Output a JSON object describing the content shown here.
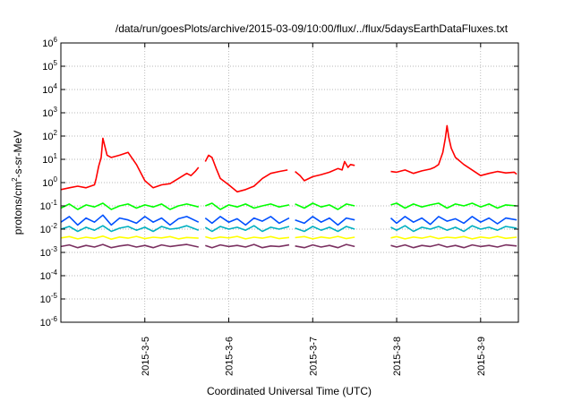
{
  "chart_data": {
    "type": "line",
    "title": "/data/run/goesPlots/archive/2015-03-09/10:00/flux/../flux/5daysEarthDataFluxes.txt",
    "xlabel": "Coordinated Universal Time (UTC)",
    "ylabel_parts": {
      "base": "protons/cm",
      "sup": "2",
      "rest": "-s-sr-MeV"
    },
    "x_unit": "days relative to 2015-03-05 00:00 UTC",
    "xlim": [
      -1.0,
      4.45
    ],
    "yscale": "log",
    "ylim": [
      1e-06,
      1000000.0
    ],
    "grid": true,
    "legend": "none",
    "x_tick_values": [
      0,
      1,
      2,
      3,
      4
    ],
    "x_tick_labels": [
      "2015-3-5",
      "2015-3-6",
      "2015-3-7",
      "2015-3-8",
      "2015-3-9"
    ],
    "y_tick_exponents": [
      -6,
      -5,
      -4,
      -3,
      -2,
      -1,
      0,
      1,
      2,
      3,
      4,
      5,
      6
    ],
    "data_gaps": [
      [
        0.65,
        0.72
      ],
      [
        1.72,
        1.79
      ],
      [
        2.52,
        2.93
      ]
    ],
    "series": [
      {
        "color": "#ff0000",
        "x": [
          -1.0,
          -0.9,
          -0.8,
          -0.7,
          -0.6,
          -0.58,
          -0.55,
          -0.52,
          -0.5,
          -0.45,
          -0.4,
          -0.3,
          -0.2,
          -0.1,
          0.0,
          0.1,
          0.2,
          0.3,
          0.4,
          0.5,
          0.55,
          0.6,
          0.64,
          0.72,
          0.76,
          0.8,
          0.85,
          0.9,
          1.0,
          1.1,
          1.2,
          1.3,
          1.4,
          1.5,
          1.6,
          1.7,
          1.79,
          1.85,
          1.9,
          2.0,
          2.1,
          2.2,
          2.3,
          2.35,
          2.38,
          2.42,
          2.45,
          2.5,
          2.93,
          3.0,
          3.1,
          3.2,
          3.3,
          3.4,
          3.45,
          3.5,
          3.55,
          3.58,
          3.6,
          3.62,
          3.65,
          3.7,
          3.8,
          3.9,
          4.0,
          4.1,
          4.2,
          4.3,
          4.4,
          4.43
        ],
        "y": [
          0.5,
          0.6,
          0.7,
          0.6,
          0.8,
          1.5,
          5,
          12,
          80,
          15,
          12,
          15,
          20,
          6,
          1.2,
          0.6,
          0.8,
          0.9,
          1.5,
          2.5,
          2.0,
          3.0,
          4.5,
          8,
          15,
          12,
          4,
          1.5,
          0.8,
          0.4,
          0.5,
          0.7,
          1.5,
          2.5,
          3.0,
          3.5,
          3.0,
          2.0,
          1.2,
          1.8,
          2.2,
          2.8,
          4.0,
          3.5,
          8,
          4.5,
          6,
          5.5,
          3.0,
          2.8,
          3.5,
          2.5,
          3.2,
          3.8,
          4.5,
          6,
          20,
          80,
          280,
          90,
          30,
          12,
          6,
          3.5,
          2.0,
          2.5,
          3.0,
          2.6,
          2.8,
          2.3
        ]
      },
      {
        "color": "#00ff00",
        "x": [
          -1.0,
          -0.9,
          -0.8,
          -0.7,
          -0.6,
          -0.5,
          -0.4,
          -0.3,
          -0.2,
          -0.1,
          0.0,
          0.1,
          0.2,
          0.3,
          0.4,
          0.5,
          0.64,
          0.72,
          0.8,
          0.9,
          1.0,
          1.1,
          1.2,
          1.3,
          1.4,
          1.5,
          1.6,
          1.72,
          1.79,
          1.9,
          2.0,
          2.1,
          2.2,
          2.3,
          2.4,
          2.5,
          2.93,
          3.0,
          3.1,
          3.2,
          3.3,
          3.4,
          3.5,
          3.6,
          3.7,
          3.8,
          3.9,
          4.0,
          4.1,
          4.2,
          4.3,
          4.43
        ],
        "y": [
          0.08,
          0.12,
          0.07,
          0.11,
          0.09,
          0.13,
          0.07,
          0.1,
          0.12,
          0.08,
          0.11,
          0.09,
          0.12,
          0.07,
          0.1,
          0.12,
          0.09,
          0.1,
          0.13,
          0.07,
          0.11,
          0.09,
          0.12,
          0.08,
          0.1,
          0.12,
          0.09,
          0.11,
          0.12,
          0.08,
          0.13,
          0.09,
          0.11,
          0.07,
          0.12,
          0.1,
          0.11,
          0.13,
          0.08,
          0.12,
          0.09,
          0.11,
          0.13,
          0.08,
          0.12,
          0.1,
          0.13,
          0.09,
          0.12,
          0.08,
          0.11,
          0.1
        ]
      },
      {
        "color": "#0050ff",
        "x": [
          -1.0,
          -0.9,
          -0.8,
          -0.7,
          -0.6,
          -0.5,
          -0.4,
          -0.3,
          -0.2,
          -0.1,
          0.0,
          0.1,
          0.2,
          0.3,
          0.4,
          0.5,
          0.64,
          0.72,
          0.8,
          0.9,
          1.0,
          1.1,
          1.2,
          1.3,
          1.4,
          1.5,
          1.6,
          1.72,
          1.79,
          1.9,
          2.0,
          2.1,
          2.2,
          2.3,
          2.4,
          2.5,
          2.93,
          3.0,
          3.1,
          3.2,
          3.3,
          3.4,
          3.5,
          3.6,
          3.7,
          3.8,
          3.9,
          4.0,
          4.1,
          4.2,
          4.3,
          4.43
        ],
        "y": [
          0.02,
          0.035,
          0.015,
          0.03,
          0.02,
          0.04,
          0.015,
          0.03,
          0.025,
          0.018,
          0.035,
          0.02,
          0.03,
          0.015,
          0.028,
          0.035,
          0.02,
          0.03,
          0.018,
          0.035,
          0.02,
          0.028,
          0.015,
          0.03,
          0.022,
          0.035,
          0.018,
          0.03,
          0.025,
          0.018,
          0.035,
          0.02,
          0.03,
          0.015,
          0.03,
          0.025,
          0.03,
          0.018,
          0.035,
          0.02,
          0.03,
          0.016,
          0.035,
          0.022,
          0.028,
          0.018,
          0.035,
          0.02,
          0.03,
          0.017,
          0.03,
          0.025
        ]
      },
      {
        "color": "#00b0c0",
        "x": [
          -1.0,
          -0.9,
          -0.8,
          -0.7,
          -0.6,
          -0.5,
          -0.4,
          -0.3,
          -0.2,
          -0.1,
          0.0,
          0.1,
          0.2,
          0.3,
          0.4,
          0.5,
          0.64,
          0.72,
          0.8,
          0.9,
          1.0,
          1.1,
          1.2,
          1.3,
          1.4,
          1.5,
          1.6,
          1.72,
          1.79,
          1.9,
          2.0,
          2.1,
          2.2,
          2.3,
          2.4,
          2.5,
          2.93,
          3.0,
          3.1,
          3.2,
          3.3,
          3.4,
          3.5,
          3.6,
          3.7,
          3.8,
          3.9,
          4.0,
          4.1,
          4.2,
          4.3,
          4.43
        ],
        "y": [
          0.01,
          0.013,
          0.008,
          0.012,
          0.009,
          0.014,
          0.008,
          0.011,
          0.013,
          0.009,
          0.012,
          0.008,
          0.013,
          0.01,
          0.011,
          0.014,
          0.009,
          0.012,
          0.008,
          0.013,
          0.01,
          0.012,
          0.009,
          0.014,
          0.008,
          0.012,
          0.01,
          0.013,
          0.011,
          0.008,
          0.013,
          0.009,
          0.012,
          0.008,
          0.013,
          0.01,
          0.012,
          0.009,
          0.014,
          0.008,
          0.012,
          0.01,
          0.013,
          0.009,
          0.012,
          0.008,
          0.014,
          0.01,
          0.012,
          0.009,
          0.013,
          0.011
        ]
      },
      {
        "color": "#ffff00",
        "x": [
          -1.0,
          -0.9,
          -0.8,
          -0.7,
          -0.6,
          -0.5,
          -0.4,
          -0.3,
          -0.2,
          -0.1,
          0.0,
          0.1,
          0.2,
          0.3,
          0.4,
          0.5,
          0.64,
          0.72,
          0.8,
          0.9,
          1.0,
          1.1,
          1.2,
          1.3,
          1.4,
          1.5,
          1.6,
          1.72,
          1.79,
          1.9,
          2.0,
          2.1,
          2.2,
          2.3,
          2.4,
          2.5,
          2.93,
          3.0,
          3.1,
          3.2,
          3.3,
          3.4,
          3.5,
          3.6,
          3.7,
          3.8,
          3.9,
          4.0,
          4.1,
          4.2,
          4.3,
          4.43
        ],
        "y": [
          0.0042,
          0.0048,
          0.0038,
          0.0045,
          0.004,
          0.005,
          0.0037,
          0.0046,
          0.0041,
          0.0049,
          0.0039,
          0.0045,
          0.0042,
          0.0048,
          0.0038,
          0.0044,
          0.0041,
          0.0047,
          0.0039,
          0.0046,
          0.0042,
          0.0049,
          0.0038,
          0.0045,
          0.0041,
          0.0048,
          0.0039,
          0.0044,
          0.0043,
          0.0048,
          0.0038,
          0.0046,
          0.0041,
          0.0049,
          0.0039,
          0.0045,
          0.0042,
          0.0048,
          0.0038,
          0.0046,
          0.0041,
          0.0049,
          0.0039,
          0.0045,
          0.0042,
          0.0048,
          0.0038,
          0.0046,
          0.0041,
          0.0049,
          0.004,
          0.0045
        ]
      },
      {
        "color": "#7a3060",
        "x": [
          -1.0,
          -0.9,
          -0.8,
          -0.7,
          -0.6,
          -0.5,
          -0.4,
          -0.3,
          -0.2,
          -0.1,
          0.0,
          0.1,
          0.2,
          0.3,
          0.4,
          0.5,
          0.64,
          0.72,
          0.8,
          0.9,
          1.0,
          1.1,
          1.2,
          1.3,
          1.4,
          1.5,
          1.6,
          1.72,
          1.79,
          1.9,
          2.0,
          2.1,
          2.2,
          2.3,
          2.4,
          2.5,
          2.93,
          3.0,
          3.1,
          3.2,
          3.3,
          3.4,
          3.5,
          3.6,
          3.7,
          3.8,
          3.9,
          4.0,
          4.1,
          4.2,
          4.3,
          4.43
        ],
        "y": [
          0.0018,
          0.0021,
          0.0016,
          0.002,
          0.0017,
          0.0022,
          0.0016,
          0.0019,
          0.0021,
          0.0017,
          0.002,
          0.0016,
          0.0021,
          0.0018,
          0.002,
          0.0022,
          0.0017,
          0.002,
          0.0016,
          0.0021,
          0.0018,
          0.002,
          0.0017,
          0.0022,
          0.0016,
          0.0019,
          0.0018,
          0.0021,
          0.0019,
          0.0016,
          0.0021,
          0.0017,
          0.002,
          0.0016,
          0.0022,
          0.0018,
          0.002,
          0.0017,
          0.0021,
          0.0016,
          0.002,
          0.0018,
          0.0022,
          0.0017,
          0.002,
          0.0016,
          0.0021,
          0.0018,
          0.002,
          0.0017,
          0.0021,
          0.0019
        ]
      }
    ]
  }
}
